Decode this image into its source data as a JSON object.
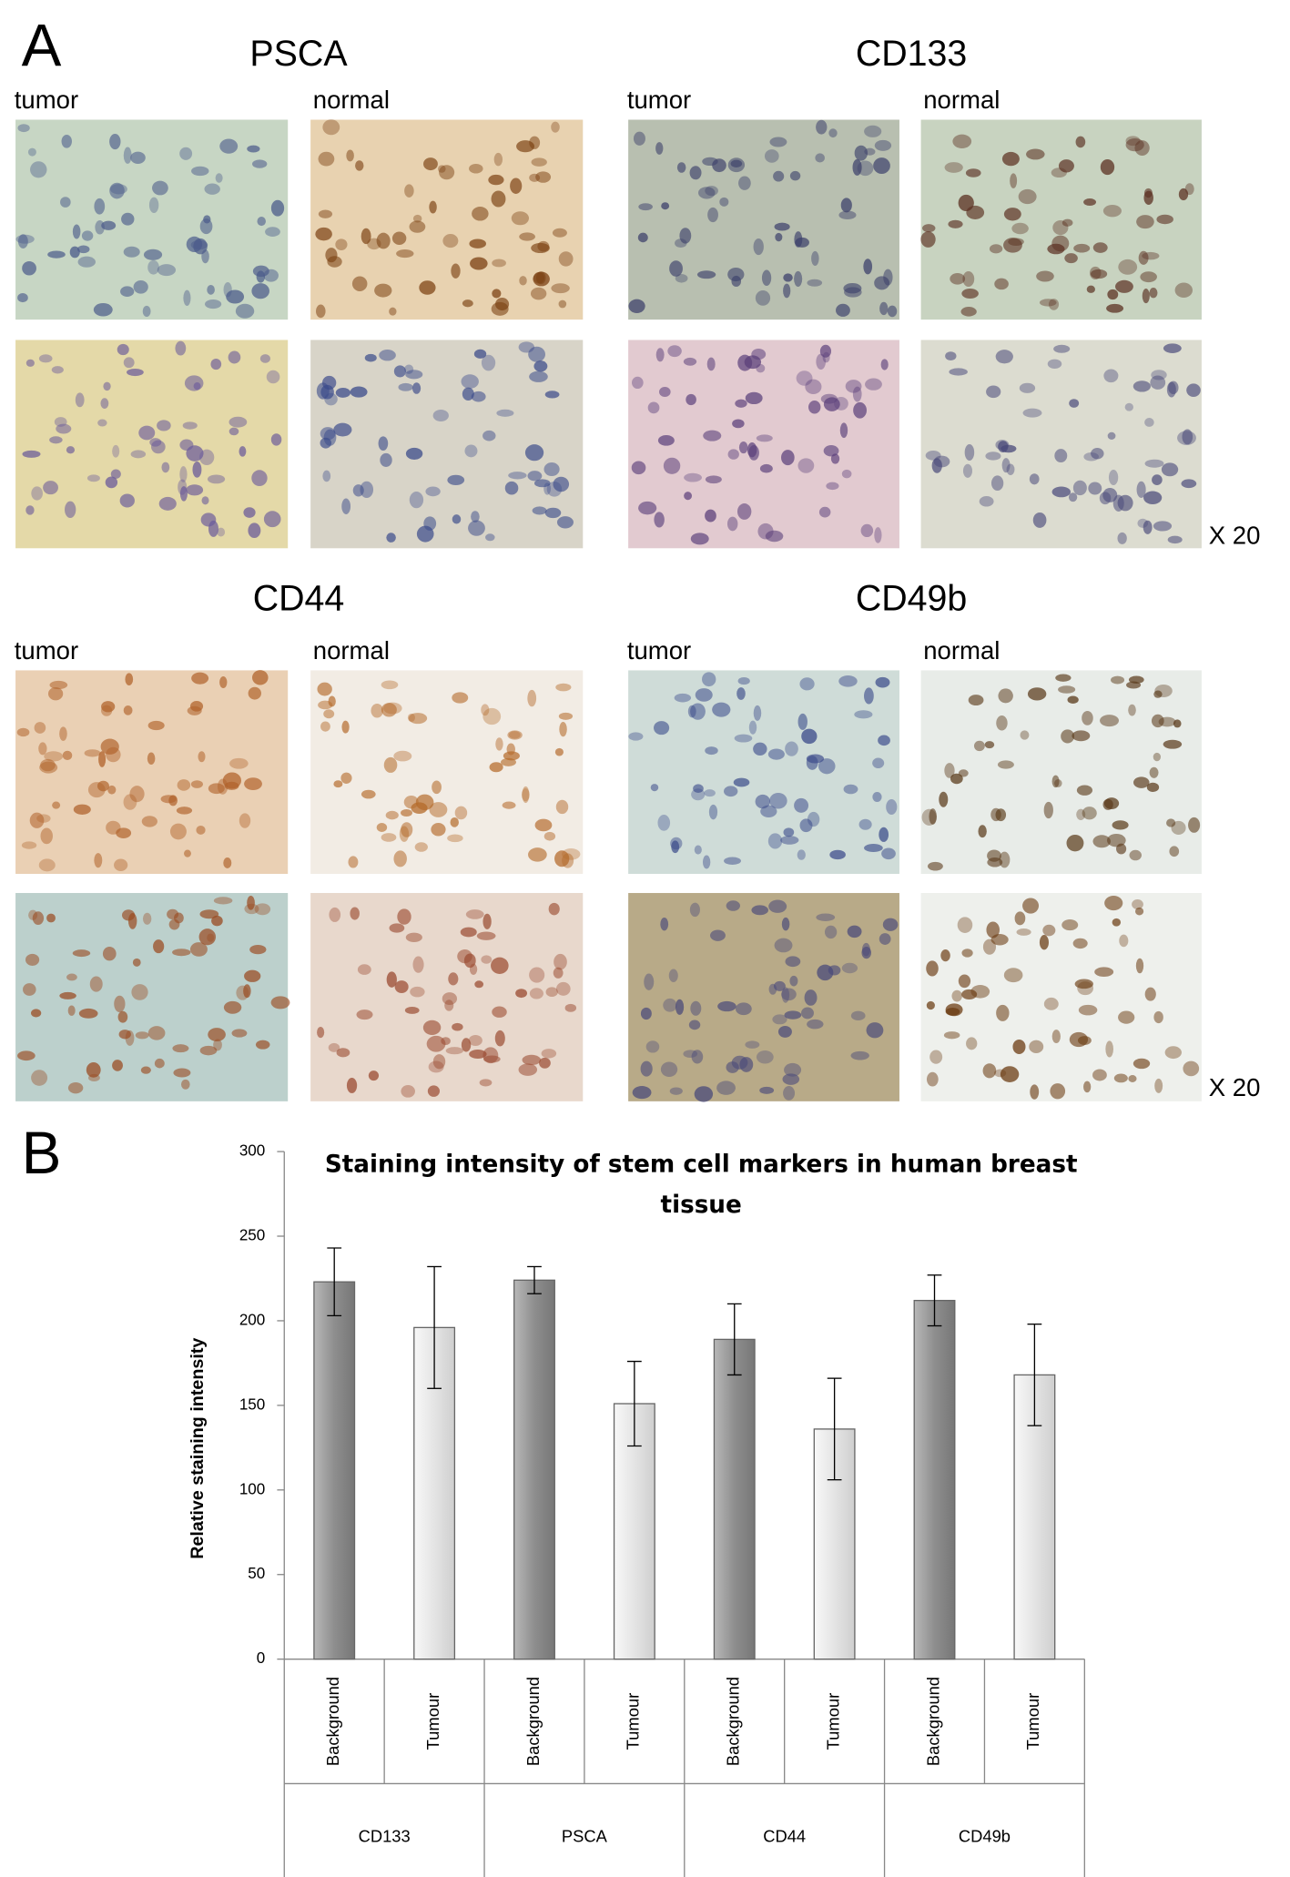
{
  "panel_a": {
    "label": "A",
    "markers": [
      {
        "name": "PSCA",
        "left": "tumor",
        "right": "normal"
      },
      {
        "name": "CD133",
        "left": "tumor",
        "right": "normal"
      },
      {
        "name": "CD44",
        "left": "tumor",
        "right": "normal"
      },
      {
        "name": "CD49b",
        "left": "tumor",
        "right": "normal"
      }
    ],
    "magnification": "X 20"
  },
  "panel_b": {
    "label": "B"
  },
  "chart_data": {
    "type": "bar",
    "title": "Staining intensity of stem cell markers in human breast tissue",
    "y_label": "Relative staining intensity",
    "categories": [
      "Background",
      "Tumour",
      "Background",
      "Tumour",
      "Background",
      "Tumour",
      "Background",
      "Tumour"
    ],
    "groups": [
      "CD133",
      "PSCA",
      "CD44",
      "CD49b"
    ],
    "values": [
      223,
      196,
      224,
      151,
      189,
      136,
      212,
      168
    ],
    "errors": [
      20,
      36,
      8,
      25,
      21,
      30,
      15,
      30
    ],
    "bar_colors": [
      "#8e8e8e",
      "#e4e4e4"
    ],
    "ylim": [
      0,
      300
    ],
    "yticks": [
      0,
      50,
      100,
      150,
      200,
      250,
      300
    ]
  }
}
